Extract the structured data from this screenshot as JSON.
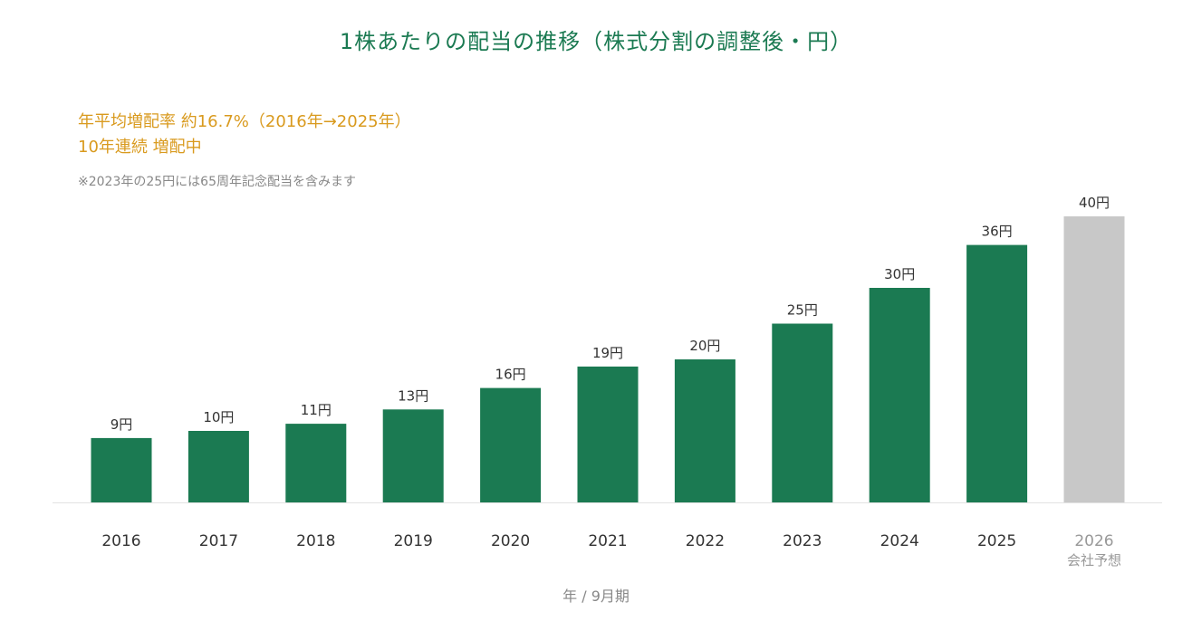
{
  "title": "1株あたりの配当の推移（株式分割の調整後・円）",
  "highlights": {
    "cagr": "年平均増配率 約16.7%（2016年→2025年）",
    "streak": "10年連続 増配中"
  },
  "note": "※2023年の25円には65周年記念配当を含みます",
  "colors": {
    "actual": "#1b7a52",
    "forecast": "#c8c8c8",
    "highlight": "#d99a1e",
    "muted": "#888888"
  },
  "chart_data": {
    "type": "bar",
    "categories": [
      "2016",
      "2017",
      "2018",
      "2019",
      "2020",
      "2021",
      "2022",
      "2023",
      "2024",
      "2025",
      "2026"
    ],
    "values": [
      9,
      10,
      11,
      13,
      16,
      19,
      20,
      25,
      30,
      36,
      40
    ],
    "value_labels": [
      "9円",
      "10円",
      "11円",
      "13円",
      "16円",
      "19円",
      "20円",
      "25円",
      "30円",
      "36円",
      "40円"
    ],
    "forecast": [
      false,
      false,
      false,
      false,
      false,
      false,
      false,
      false,
      false,
      false,
      true
    ],
    "sublabels": [
      "",
      "",
      "",
      "",
      "",
      "",
      "",
      "",
      "",
      "",
      "会社予想"
    ],
    "xlabel": "年 / 9月期",
    "ylabel": "",
    "ylim": [
      0,
      40
    ],
    "grid": false,
    "legend": "none"
  }
}
